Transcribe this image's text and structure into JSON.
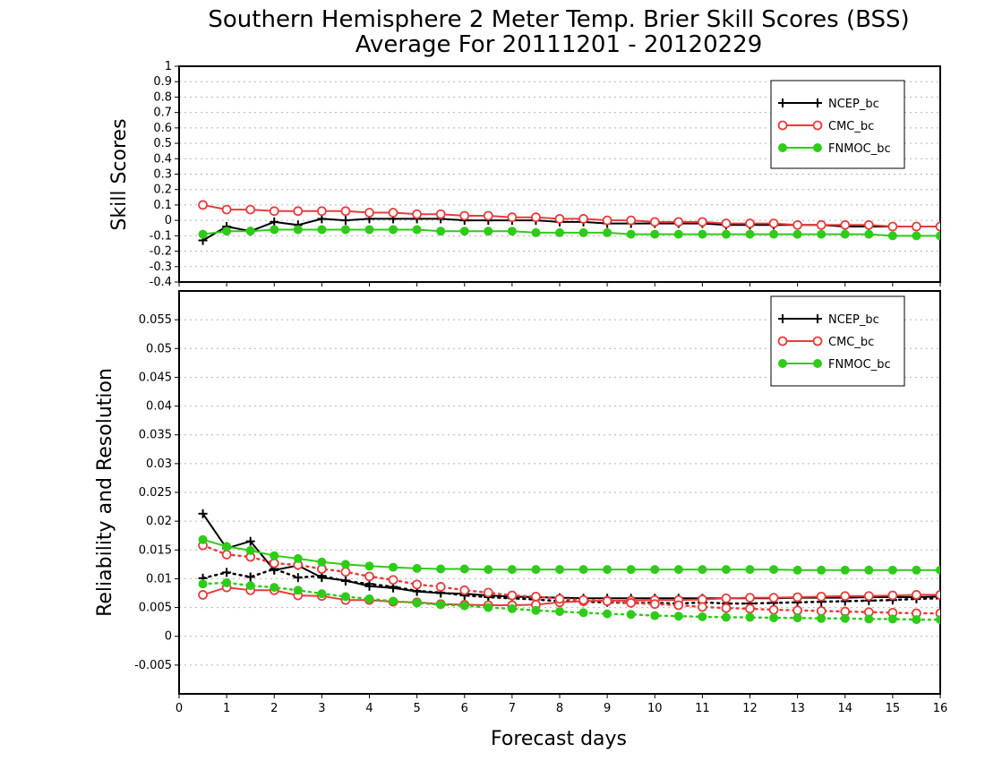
{
  "title_line1": "Southern Hemisphere 2 Meter Temp. Brier Skill Scores (BSS)",
  "title_line2": "Average For 20111201 - 20120229",
  "xlabel": "Forecast days",
  "colors": {
    "ncep": "#000000",
    "cmc": "#e83c3c",
    "fnmoc": "#2ecc18"
  },
  "chart_data": [
    {
      "type": "line",
      "ylabel": "Skill Scores",
      "xlim": [
        0,
        16
      ],
      "ylim": [
        -0.4,
        1
      ],
      "x_ticks": [
        0,
        1,
        2,
        3,
        4,
        5,
        6,
        7,
        8,
        9,
        10,
        11,
        12,
        13,
        14,
        15,
        16
      ],
      "x_tick_labels": [
        "0",
        "1",
        "2",
        "3",
        "4",
        "5",
        "6",
        "7",
        "8",
        "9",
        "10",
        "11",
        "12",
        "13",
        "14",
        "15",
        "16"
      ],
      "y_ticks": [
        -0.4,
        -0.3,
        -0.2,
        -0.1,
        0,
        0.1,
        0.2,
        0.3,
        0.4,
        0.5,
        0.6,
        0.7,
        0.8,
        0.9,
        1
      ],
      "y_tick_labels": [
        "-0.4",
        "-0.3",
        "-0.2",
        "-0.1",
        "0",
        "0.1",
        "0.2",
        "0.3",
        "0.4",
        "0.5",
        "0.6",
        "0.7",
        "0.8",
        "0.9",
        "1"
      ],
      "grid": true,
      "legend_position": "top-right",
      "x": [
        0.5,
        1,
        1.5,
        2,
        2.5,
        3,
        3.5,
        4,
        4.5,
        5,
        5.5,
        6,
        6.5,
        7,
        7.5,
        8,
        8.5,
        9,
        9.5,
        10,
        10.5,
        11,
        11.5,
        12,
        12.5,
        13,
        13.5,
        14,
        14.5,
        15,
        15.5,
        16
      ],
      "series": [
        {
          "name": "NCEP_bc",
          "key": "ncep",
          "marker": "plus",
          "style": "solid",
          "values": [
            -0.13,
            -0.04,
            -0.07,
            -0.01,
            -0.03,
            0.01,
            0.0,
            0.01,
            0.01,
            0.01,
            0.01,
            0.0,
            0.0,
            0.0,
            0.0,
            -0.01,
            -0.01,
            -0.02,
            -0.02,
            -0.02,
            -0.02,
            -0.02,
            -0.03,
            -0.03,
            -0.03,
            -0.03,
            -0.03,
            -0.04,
            -0.04,
            -0.04,
            -0.04,
            -0.04
          ]
        },
        {
          "name": "CMC_bc",
          "key": "cmc",
          "marker": "circle-open",
          "style": "solid",
          "values": [
            0.1,
            0.07,
            0.07,
            0.06,
            0.06,
            0.06,
            0.06,
            0.05,
            0.05,
            0.04,
            0.04,
            0.03,
            0.03,
            0.02,
            0.02,
            0.01,
            0.01,
            0.0,
            0.0,
            -0.01,
            -0.01,
            -0.01,
            -0.02,
            -0.02,
            -0.02,
            -0.03,
            -0.03,
            -0.03,
            -0.03,
            -0.04,
            -0.04,
            -0.04
          ]
        },
        {
          "name": "FNMOC_bc",
          "key": "fnmoc",
          "marker": "circle-filled",
          "style": "solid",
          "values": [
            -0.09,
            -0.07,
            -0.07,
            -0.06,
            -0.06,
            -0.06,
            -0.06,
            -0.06,
            -0.06,
            -0.06,
            -0.07,
            -0.07,
            -0.07,
            -0.07,
            -0.08,
            -0.08,
            -0.08,
            -0.08,
            -0.09,
            -0.09,
            -0.09,
            -0.09,
            -0.09,
            -0.09,
            -0.09,
            -0.09,
            -0.09,
            -0.09,
            -0.09,
            -0.1,
            -0.1,
            -0.1
          ]
        }
      ]
    },
    {
      "type": "line",
      "ylabel": "Reliability and Resolution",
      "xlim": [
        0,
        16
      ],
      "ylim": [
        -0.01,
        0.06
      ],
      "x_ticks": [
        0,
        1,
        2,
        3,
        4,
        5,
        6,
        7,
        8,
        9,
        10,
        11,
        12,
        13,
        14,
        15,
        16
      ],
      "x_tick_labels": [
        "0",
        "1",
        "2",
        "3",
        "4",
        "5",
        "6",
        "7",
        "8",
        "9",
        "10",
        "11",
        "12",
        "13",
        "14",
        "15",
        "16"
      ],
      "y_ticks": [
        -0.005,
        0,
        0.005,
        0.01,
        0.015,
        0.02,
        0.025,
        0.03,
        0.035,
        0.04,
        0.045,
        0.05,
        0.055
      ],
      "y_tick_labels": [
        "-0.005",
        "0",
        "0.005",
        "0.01",
        "0.015",
        "0.02",
        "0.025",
        "0.03",
        "0.035",
        "0.04",
        "0.045",
        "0.05",
        "0.055"
      ],
      "grid": true,
      "legend_position": "top-right",
      "x": [
        0.5,
        1,
        1.5,
        2,
        2.5,
        3,
        3.5,
        4,
        4.5,
        5,
        5.5,
        6,
        6.5,
        7,
        7.5,
        8,
        8.5,
        9,
        9.5,
        10,
        10.5,
        11,
        11.5,
        12,
        12.5,
        13,
        13.5,
        14,
        14.5,
        15,
        15.5,
        16
      ],
      "series": [
        {
          "name": "NCEP_bc",
          "key": "ncep",
          "marker": "plus",
          "style": "solid",
          "role": "reliability",
          "values": [
            0.0213,
            0.0153,
            0.0165,
            0.0115,
            0.0123,
            0.0102,
            0.0097,
            0.0087,
            0.0084,
            0.0078,
            0.0075,
            0.0074,
            0.0071,
            0.0069,
            0.0068,
            0.0067,
            0.0066,
            0.0066,
            0.0066,
            0.0066,
            0.0066,
            0.0066,
            0.0066,
            0.0066,
            0.0066,
            0.0067,
            0.0067,
            0.0067,
            0.0068,
            0.0068,
            0.0068,
            0.0069
          ]
        },
        {
          "name": "NCEP_bc",
          "key": "ncep",
          "marker": "plus",
          "style": "dotted",
          "role": "resolution",
          "values": [
            0.0101,
            0.0111,
            0.0103,
            0.0117,
            0.0102,
            0.0105,
            0.0096,
            0.0091,
            0.0086,
            0.0079,
            0.0076,
            0.0071,
            0.0068,
            0.0066,
            0.0064,
            0.0061,
            0.006,
            0.0059,
            0.0058,
            0.0058,
            0.0057,
            0.0059,
            0.0057,
            0.0057,
            0.0058,
            0.0059,
            0.006,
            0.0061,
            0.0062,
            0.0063,
            0.0065,
            0.0066
          ]
        },
        {
          "name": "CMC_bc",
          "key": "cmc",
          "marker": "circle-open",
          "style": "solid",
          "role": "reliability",
          "values": [
            0.0072,
            0.0085,
            0.008,
            0.008,
            0.0071,
            0.007,
            0.0063,
            0.0063,
            0.006,
            0.0059,
            0.0056,
            0.0055,
            0.0054,
            0.0054,
            0.0055,
            0.0059,
            0.0061,
            0.0062,
            0.0062,
            0.0063,
            0.0063,
            0.0064,
            0.0066,
            0.0067,
            0.0067,
            0.0068,
            0.0069,
            0.007,
            0.007,
            0.0071,
            0.0072,
            0.0072
          ]
        },
        {
          "name": "CMC_bc",
          "key": "cmc",
          "marker": "circle-open",
          "style": "dotted",
          "role": "resolution",
          "values": [
            0.0158,
            0.0142,
            0.0138,
            0.0127,
            0.0124,
            0.0117,
            0.0112,
            0.0104,
            0.0098,
            0.009,
            0.0086,
            0.008,
            0.0076,
            0.0071,
            0.0069,
            0.0065,
            0.0063,
            0.0061,
            0.0058,
            0.0056,
            0.0054,
            0.0051,
            0.0049,
            0.0048,
            0.0046,
            0.0045,
            0.0044,
            0.0043,
            0.0042,
            0.0041,
            0.004,
            0.004
          ]
        },
        {
          "name": "FNMOC_bc",
          "key": "fnmoc",
          "marker": "circle-filled",
          "style": "solid",
          "role": "reliability",
          "values": [
            0.0168,
            0.0156,
            0.0149,
            0.014,
            0.0135,
            0.0129,
            0.0125,
            0.0122,
            0.012,
            0.0118,
            0.0117,
            0.0117,
            0.0116,
            0.0116,
            0.0116,
            0.0116,
            0.0116,
            0.0116,
            0.0116,
            0.0116,
            0.0116,
            0.0116,
            0.0116,
            0.0116,
            0.0116,
            0.0115,
            0.0115,
            0.0115,
            0.0115,
            0.0115,
            0.0115,
            0.0115
          ]
        },
        {
          "name": "FNMOC_bc",
          "key": "fnmoc",
          "marker": "circle-filled",
          "style": "dotted",
          "role": "resolution",
          "values": [
            0.0091,
            0.0093,
            0.0088,
            0.0085,
            0.008,
            0.0074,
            0.0069,
            0.0065,
            0.0061,
            0.0058,
            0.0055,
            0.0053,
            0.005,
            0.0048,
            0.0045,
            0.0043,
            0.0041,
            0.0039,
            0.0038,
            0.0036,
            0.0035,
            0.0034,
            0.0033,
            0.0033,
            0.0032,
            0.0032,
            0.0031,
            0.0031,
            0.003,
            0.003,
            0.0029,
            0.0029
          ]
        }
      ]
    }
  ]
}
